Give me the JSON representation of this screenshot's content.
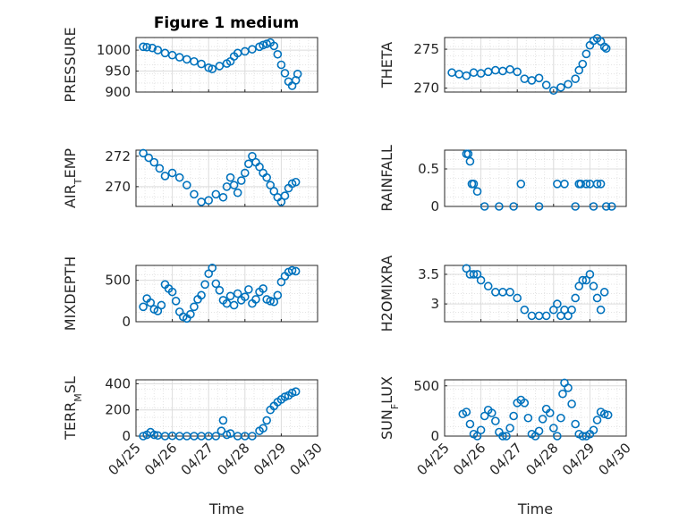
{
  "figure": {
    "title": "Figure 1 medium",
    "marker_color": "#0072BD",
    "marker": "circle-open",
    "layout": "4x2 grid",
    "grid": "on (major + minor dotted)"
  },
  "chart_data": [
    {
      "type": "scatter",
      "title": "Figure 1 medium",
      "ylabel": "PRESSURE",
      "xlabel": "",
      "ylim": [
        900,
        1030
      ],
      "yticks": [
        "900",
        "950",
        "1000"
      ],
      "xticks": [
        "04/25",
        "04/26",
        "04/27",
        "04/28",
        "04/29",
        "04/30"
      ],
      "xtick_labels_shown": false,
      "x": [
        25.2,
        25.3,
        25.45,
        25.6,
        25.8,
        26.0,
        26.2,
        26.4,
        26.6,
        26.8,
        27.0,
        27.1,
        27.3,
        27.5,
        27.6,
        27.7,
        27.8,
        28.0,
        28.2,
        28.4,
        28.5,
        28.6,
        28.7,
        28.8,
        28.9,
        29.0,
        29.1,
        29.2,
        29.3,
        29.4,
        29.45
      ],
      "y": [
        1008,
        1007,
        1005,
        1000,
        993,
        988,
        983,
        978,
        973,
        967,
        958,
        955,
        962,
        968,
        973,
        985,
        993,
        997,
        1002,
        1008,
        1012,
        1015,
        1018,
        1010,
        990,
        965,
        945,
        925,
        915,
        928,
        943
      ]
    },
    {
      "type": "scatter",
      "ylabel": "THETA",
      "xlabel": "",
      "ylim": [
        269.5,
        276.5
      ],
      "yticks": [
        "270",
        "275"
      ],
      "xticks": [
        "04/25",
        "04/26",
        "04/27",
        "04/28",
        "04/29",
        "04/30"
      ],
      "xtick_labels_shown": false,
      "x": [
        25.2,
        25.4,
        25.6,
        25.8,
        26.0,
        26.2,
        26.4,
        26.6,
        26.8,
        27.0,
        27.2,
        27.4,
        27.6,
        27.8,
        28.0,
        28.2,
        28.4,
        28.6,
        28.7,
        28.8,
        28.9,
        29.0,
        29.1,
        29.2,
        29.3,
        29.4,
        29.45
      ],
      "y": [
        272,
        271.8,
        271.6,
        272,
        271.9,
        272.1,
        272.3,
        272.2,
        272.4,
        272.1,
        271.2,
        271,
        271.3,
        270.4,
        269.7,
        270.1,
        270.5,
        271.2,
        272.3,
        273.1,
        274.4,
        275.5,
        276.1,
        276.4,
        276,
        275.3,
        275.1
      ]
    },
    {
      "type": "scatter",
      "ylabel": "AIR_TEMP",
      "xlabel": "",
      "ylim": [
        268.7,
        272.4
      ],
      "yticks": [
        "270",
        "272"
      ],
      "xticks": [
        "04/25",
        "04/26",
        "04/27",
        "04/28",
        "04/29",
        "04/30"
      ],
      "xtick_labels_shown": false,
      "x": [
        25.2,
        25.35,
        25.5,
        25.65,
        25.8,
        26.0,
        26.2,
        26.4,
        26.6,
        26.8,
        27.0,
        27.2,
        27.4,
        27.5,
        27.6,
        27.7,
        27.8,
        27.9,
        28.0,
        28.1,
        28.2,
        28.3,
        28.4,
        28.5,
        28.6,
        28.7,
        28.8,
        28.9,
        29.0,
        29.1,
        29.2,
        29.3,
        29.4
      ],
      "y": [
        272.2,
        271.9,
        271.6,
        271.2,
        270.7,
        270.9,
        270.6,
        270.1,
        269.5,
        269,
        269.1,
        269.5,
        269.3,
        270,
        270.6,
        270.1,
        269.6,
        270.4,
        270.9,
        271.5,
        272,
        271.6,
        271.3,
        270.9,
        270.6,
        270.1,
        269.7,
        269.3,
        269,
        269.4,
        269.9,
        270.2,
        270.3
      ]
    },
    {
      "type": "scatter",
      "ylabel": "RAINFALL",
      "xlabel": "",
      "ylim": [
        0,
        0.75
      ],
      "yticks": [
        "0",
        "0.5"
      ],
      "xticks": [
        "04/25",
        "04/26",
        "04/27",
        "04/28",
        "04/29",
        "04/30"
      ],
      "xtick_labels_shown": false,
      "x": [
        25.6,
        25.65,
        25.7,
        25.75,
        25.8,
        25.9,
        26.1,
        26.5,
        26.9,
        27.1,
        27.6,
        28.1,
        28.3,
        28.6,
        28.7,
        28.75,
        28.9,
        29.0,
        29.1,
        29.2,
        29.3,
        29.45,
        29.6
      ],
      "y": [
        0.7,
        0.7,
        0.6,
        0.3,
        0.3,
        0.2,
        0,
        0,
        0,
        0.3,
        0,
        0.3,
        0.3,
        0,
        0.3,
        0.3,
        0.3,
        0.3,
        0,
        0.3,
        0.3,
        0,
        0
      ]
    },
    {
      "type": "scatter",
      "ylabel": "MIXDEPTH",
      "xlabel": "",
      "ylim": [
        0,
        680
      ],
      "yticks": [
        "0",
        "500"
      ],
      "xticks": [
        "04/25",
        "04/26",
        "04/27",
        "04/28",
        "04/29",
        "04/30"
      ],
      "xtick_labels_shown": false,
      "x": [
        25.2,
        25.3,
        25.4,
        25.5,
        25.6,
        25.7,
        25.8,
        25.9,
        26.0,
        26.1,
        26.2,
        26.3,
        26.4,
        26.5,
        26.6,
        26.7,
        26.8,
        26.9,
        27.0,
        27.1,
        27.2,
        27.3,
        27.4,
        27.5,
        27.6,
        27.7,
        27.8,
        27.9,
        28.0,
        28.1,
        28.2,
        28.3,
        28.4,
        28.5,
        28.6,
        28.7,
        28.8,
        28.9,
        29.0,
        29.1,
        29.2,
        29.3,
        29.4
      ],
      "y": [
        180,
        280,
        230,
        150,
        130,
        200,
        450,
        400,
        360,
        250,
        120,
        60,
        40,
        90,
        180,
        270,
        320,
        450,
        580,
        650,
        460,
        380,
        260,
        220,
        310,
        200,
        340,
        260,
        300,
        390,
        220,
        270,
        360,
        400,
        270,
        250,
        240,
        320,
        480,
        550,
        600,
        620,
        610
      ]
    },
    {
      "type": "scatter",
      "ylabel": "H2OMIXRA",
      "xlabel": "",
      "ylim": [
        2.7,
        3.65
      ],
      "yticks": [
        "3",
        "3.5"
      ],
      "xticks": [
        "04/25",
        "04/26",
        "04/27",
        "04/28",
        "04/29",
        "04/30"
      ],
      "xtick_labels_shown": false,
      "x": [
        25.6,
        25.7,
        25.8,
        25.9,
        26.0,
        26.2,
        26.4,
        26.6,
        26.8,
        27.0,
        27.2,
        27.4,
        27.6,
        27.8,
        28.0,
        28.1,
        28.2,
        28.3,
        28.4,
        28.5,
        28.6,
        28.7,
        28.8,
        28.9,
        29.0,
        29.1,
        29.2,
        29.3,
        29.4
      ],
      "y": [
        3.6,
        3.5,
        3.5,
        3.5,
        3.4,
        3.3,
        3.2,
        3.2,
        3.2,
        3.1,
        2.9,
        2.8,
        2.8,
        2.8,
        2.9,
        3.0,
        2.8,
        2.9,
        2.8,
        2.9,
        3.1,
        3.3,
        3.4,
        3.4,
        3.5,
        3.3,
        3.1,
        2.9,
        3.2
      ]
    },
    {
      "type": "scatter",
      "ylabel": "TERR_MSL",
      "xlabel": "Time",
      "ylim": [
        0,
        430
      ],
      "yticks": [
        "0",
        "200",
        "400"
      ],
      "xticks": [
        "04/25",
        "04/26",
        "04/27",
        "04/28",
        "04/29",
        "04/30"
      ],
      "xtick_labels_shown": true,
      "x": [
        25.2,
        25.3,
        25.4,
        25.5,
        25.6,
        25.8,
        26.0,
        26.2,
        26.4,
        26.6,
        26.8,
        27.0,
        27.2,
        27.35,
        27.4,
        27.5,
        27.6,
        27.8,
        28.0,
        28.2,
        28.4,
        28.5,
        28.6,
        28.7,
        28.8,
        28.9,
        29.0,
        29.1,
        29.2,
        29.3,
        29.4
      ],
      "y": [
        0,
        10,
        30,
        10,
        5,
        0,
        2,
        0,
        0,
        0,
        0,
        0,
        0,
        40,
        120,
        10,
        20,
        0,
        0,
        0,
        40,
        60,
        120,
        200,
        230,
        260,
        280,
        300,
        310,
        330,
        340
      ]
    },
    {
      "type": "scatter",
      "ylabel": "SUN_FLUX",
      "xlabel": "Time",
      "ylim": [
        0,
        560
      ],
      "yticks": [
        "0",
        "500"
      ],
      "xticks": [
        "04/25",
        "04/26",
        "04/27",
        "04/28",
        "04/29",
        "04/30"
      ],
      "xtick_labels_shown": true,
      "x": [
        25.5,
        25.6,
        25.7,
        25.8,
        25.9,
        26.0,
        26.1,
        26.2,
        26.3,
        26.4,
        26.5,
        26.6,
        26.7,
        26.8,
        26.9,
        27.0,
        27.1,
        27.2,
        27.3,
        27.4,
        27.5,
        27.6,
        27.7,
        27.8,
        27.9,
        28.0,
        28.1,
        28.2,
        28.25,
        28.3,
        28.4,
        28.5,
        28.6,
        28.7,
        28.8,
        28.9,
        29.0,
        29.1,
        29.2,
        29.3,
        29.4,
        29.5
      ],
      "y": [
        220,
        240,
        120,
        20,
        0,
        60,
        200,
        260,
        230,
        150,
        40,
        0,
        0,
        80,
        200,
        330,
        360,
        330,
        180,
        20,
        0,
        50,
        170,
        270,
        230,
        80,
        0,
        180,
        420,
        530,
        480,
        320,
        120,
        20,
        0,
        0,
        20,
        60,
        160,
        240,
        220,
        210
      ]
    }
  ]
}
